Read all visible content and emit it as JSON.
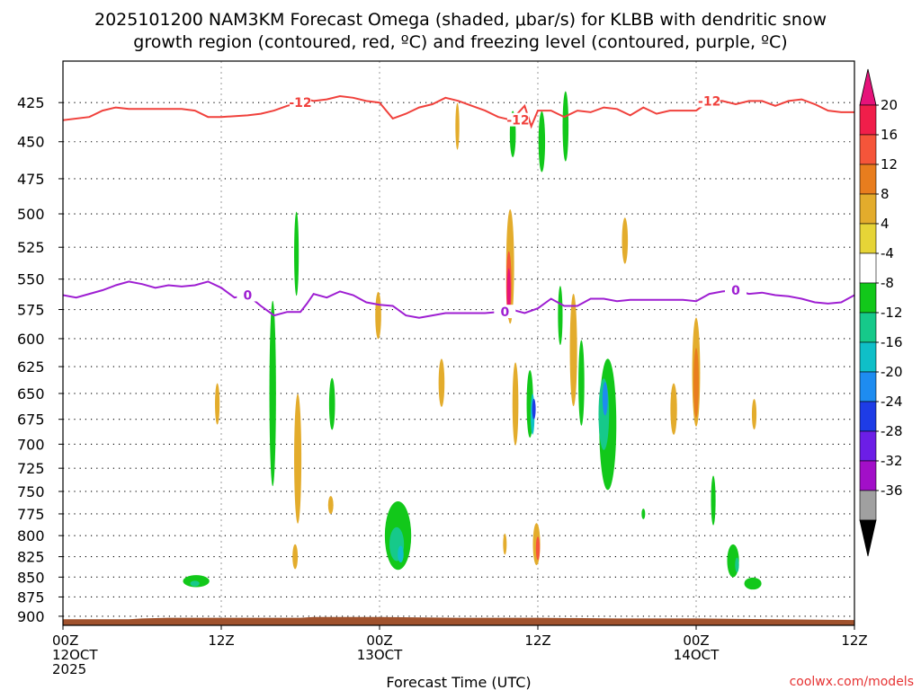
{
  "chart_data": {
    "type": "time-pressure cross-section (filled contours)",
    "title_line1": "2025101200 NAM3KM Forecast Omega (shaded, μbar/s) for KLBB with dendritic snow",
    "title_line2": "growth region (contoured, red, ºC) and freezing level (contoured, purple, ºC)",
    "xlabel": "Forecast Time (UTC)",
    "credit": "coolwx.com/models",
    "x_range_hours": [
      0,
      60
    ],
    "x_ticks": [
      {
        "hour": 0,
        "lines": [
          "00Z",
          "12OCT",
          "2025"
        ]
      },
      {
        "hour": 12,
        "lines": [
          "12Z"
        ]
      },
      {
        "hour": 24,
        "lines": [
          "00Z",
          "13OCT"
        ]
      },
      {
        "hour": 36,
        "lines": [
          "12Z"
        ]
      },
      {
        "hour": 48,
        "lines": [
          "00Z",
          "14OCT"
        ]
      },
      {
        "hour": 60,
        "lines": [
          "12Z"
        ]
      }
    ],
    "y_range_hpa": [
      912,
      400
    ],
    "y_ticks": [
      "425",
      "450",
      "475",
      "500",
      "525",
      "550",
      "575",
      "600",
      "625",
      "650",
      "675",
      "700",
      "725",
      "750",
      "775",
      "800",
      "825",
      "850",
      "875",
      "900"
    ],
    "colorbar": {
      "labels": [
        "20",
        "16",
        "12",
        "8",
        "4",
        "-4",
        "-8",
        "-12",
        "-16",
        "-20",
        "-24",
        "-28",
        "-32",
        "-36"
      ],
      "colors": [
        "#f01e4a",
        "#f5553a",
        "#e87d1e",
        "#e3ac2c",
        "#e6d437",
        "#ffffff",
        "#12c81a",
        "#16c98a",
        "#0fbfc8",
        "#1e8cf0",
        "#1e3ce6",
        "#6c1ee6",
        "#a20fc8",
        "#a0a0a0"
      ],
      "top_color": "#e6127a",
      "bottom_color": "#000000"
    },
    "contours": [
      {
        "name": "dendritic-growth-isotherm",
        "label": "-12",
        "color": "#f0413c",
        "points": [
          [
            0,
            436
          ],
          [
            2,
            434
          ],
          [
            3,
            430
          ],
          [
            4,
            428
          ],
          [
            5,
            429
          ],
          [
            6,
            429
          ],
          [
            7,
            429
          ],
          [
            8,
            429
          ],
          [
            9,
            429
          ],
          [
            10,
            430
          ],
          [
            11,
            434
          ],
          [
            12,
            434
          ],
          [
            14,
            433
          ],
          [
            15,
            432
          ],
          [
            16,
            430
          ],
          [
            17,
            427
          ],
          [
            18,
            425
          ],
          [
            18.5,
            423
          ],
          [
            19,
            424
          ],
          [
            20,
            423
          ],
          [
            21,
            421
          ],
          [
            22,
            422
          ],
          [
            23,
            424
          ],
          [
            24,
            425
          ],
          [
            25,
            435
          ],
          [
            26,
            432
          ],
          [
            27,
            428
          ],
          [
            28,
            426
          ],
          [
            29,
            422
          ],
          [
            30,
            424
          ],
          [
            31,
            427
          ],
          [
            32,
            430
          ],
          [
            33,
            434
          ],
          [
            34,
            436
          ],
          [
            35,
            427
          ],
          [
            35.5,
            440
          ],
          [
            36,
            430
          ],
          [
            37,
            430
          ],
          [
            38,
            434
          ],
          [
            39,
            430
          ],
          [
            40,
            431
          ],
          [
            41,
            428
          ],
          [
            42,
            429
          ],
          [
            43,
            433
          ],
          [
            44,
            428
          ],
          [
            45,
            432
          ],
          [
            46,
            430
          ],
          [
            47,
            430
          ],
          [
            48,
            430
          ],
          [
            49,
            424
          ],
          [
            50,
            424
          ],
          [
            51,
            426
          ],
          [
            52,
            424
          ],
          [
            53,
            424
          ],
          [
            54,
            427
          ],
          [
            55,
            424
          ],
          [
            56,
            423
          ],
          [
            57,
            426
          ],
          [
            58,
            430
          ],
          [
            59,
            431
          ],
          [
            60,
            431
          ]
        ],
        "label_hours": [
          18,
          34.5,
          49
        ]
      },
      {
        "name": "freezing-level",
        "label": "0",
        "color": "#9e1ed2",
        "points": [
          [
            0,
            563
          ],
          [
            1,
            565
          ],
          [
            2,
            562
          ],
          [
            3,
            559
          ],
          [
            4,
            555
          ],
          [
            5,
            552
          ],
          [
            6,
            554
          ],
          [
            7,
            557
          ],
          [
            8,
            555
          ],
          [
            9,
            556
          ],
          [
            10,
            555
          ],
          [
            11,
            552
          ],
          [
            12,
            557
          ],
          [
            13,
            565
          ],
          [
            14,
            563
          ],
          [
            15,
            572
          ],
          [
            16,
            580
          ],
          [
            17,
            577
          ],
          [
            18,
            577
          ],
          [
            18.5,
            570
          ],
          [
            19,
            562
          ],
          [
            20,
            565
          ],
          [
            21,
            560
          ],
          [
            22,
            563
          ],
          [
            23,
            569
          ],
          [
            24,
            571
          ],
          [
            25,
            572
          ],
          [
            26,
            580
          ],
          [
            27,
            582
          ],
          [
            28,
            580
          ],
          [
            29,
            578
          ],
          [
            30,
            578
          ],
          [
            31,
            578
          ],
          [
            32,
            578
          ],
          [
            33,
            577
          ],
          [
            34,
            575
          ],
          [
            35,
            578
          ],
          [
            36,
            574
          ],
          [
            37,
            566
          ],
          [
            38,
            572
          ],
          [
            39,
            572
          ],
          [
            40,
            566
          ],
          [
            41,
            566
          ],
          [
            42,
            568
          ],
          [
            43,
            567
          ],
          [
            44,
            567
          ],
          [
            45,
            567
          ],
          [
            46,
            567
          ],
          [
            47,
            567
          ],
          [
            48,
            568
          ],
          [
            49,
            562
          ],
          [
            50,
            560
          ],
          [
            51,
            559
          ],
          [
            52,
            562
          ],
          [
            53,
            561
          ],
          [
            54,
            563
          ],
          [
            55,
            564
          ],
          [
            56,
            566
          ],
          [
            57,
            569
          ],
          [
            58,
            570
          ],
          [
            59,
            569
          ],
          [
            60,
            563
          ]
        ],
        "label_hours": [
          14,
          33.5,
          51
        ]
      }
    ],
    "omega_features": [
      {
        "hour": 11.7,
        "hpa": 660,
        "w_hours": 0.35,
        "h_hpa": 40,
        "value": 5
      },
      {
        "hour": 15.9,
        "hpa": 650,
        "w_hours": 0.5,
        "h_hpa": 175,
        "value": -5
      },
      {
        "hour": 17.7,
        "hpa": 530,
        "w_hours": 0.35,
        "h_hpa": 65,
        "value": -5
      },
      {
        "hour": 17.8,
        "hpa": 715,
        "w_hours": 0.55,
        "h_hpa": 135,
        "value": 5
      },
      {
        "hour": 17.6,
        "hpa": 825,
        "w_hours": 0.4,
        "h_hpa": 30,
        "value": 5
      },
      {
        "hour": 20.4,
        "hpa": 660,
        "w_hours": 0.45,
        "h_hpa": 50,
        "value": -5
      },
      {
        "hour": 23.9,
        "hpa": 580,
        "w_hours": 0.45,
        "h_hpa": 40,
        "value": 5
      },
      {
        "hour": 25.4,
        "hpa": 800,
        "w_hours": 2.0,
        "h_hpa": 80,
        "value": -5
      },
      {
        "hour": 25.3,
        "hpa": 810,
        "w_hours": 1.1,
        "h_hpa": 40,
        "value": -9
      },
      {
        "hour": 25.6,
        "hpa": 822,
        "w_hours": 0.45,
        "h_hpa": 20,
        "value": -13
      },
      {
        "hour": 28.7,
        "hpa": 640,
        "w_hours": 0.45,
        "h_hpa": 45,
        "value": 5
      },
      {
        "hour": 29.9,
        "hpa": 440,
        "w_hours": 0.3,
        "h_hpa": 30,
        "value": 5
      },
      {
        "hour": 33.9,
        "hpa": 540,
        "w_hours": 0.6,
        "h_hpa": 90,
        "value": 5
      },
      {
        "hour": 33.8,
        "hpa": 555,
        "w_hours": 0.4,
        "h_hpa": 55,
        "value": 13
      },
      {
        "hour": 33.8,
        "hpa": 560,
        "w_hours": 0.27,
        "h_hpa": 38,
        "value": 21
      },
      {
        "hour": 34.1,
        "hpa": 445,
        "w_hours": 0.45,
        "h_hpa": 30,
        "value": -5
      },
      {
        "hour": 33.5,
        "hpa": 810,
        "w_hours": 0.25,
        "h_hpa": 25,
        "value": 5
      },
      {
        "hour": 35.4,
        "hpa": 660,
        "w_hours": 0.5,
        "h_hpa": 65,
        "value": -5
      },
      {
        "hour": 35.6,
        "hpa": 670,
        "w_hours": 0.3,
        "h_hpa": 40,
        "value": -13
      },
      {
        "hour": 35.7,
        "hpa": 665,
        "w_hours": 0.12,
        "h_hpa": 20,
        "value": -21
      },
      {
        "hour": 34.3,
        "hpa": 660,
        "w_hours": 0.45,
        "h_hpa": 80,
        "value": 5
      },
      {
        "hour": 35.9,
        "hpa": 810,
        "w_hours": 0.55,
        "h_hpa": 50,
        "value": 5
      },
      {
        "hour": 36.0,
        "hpa": 815,
        "w_hours": 0.3,
        "h_hpa": 28,
        "value": 13
      },
      {
        "hour": 36.3,
        "hpa": 450,
        "w_hours": 0.5,
        "h_hpa": 40,
        "value": -5
      },
      {
        "hour": 38.1,
        "hpa": 440,
        "w_hours": 0.45,
        "h_hpa": 45,
        "value": -5
      },
      {
        "hour": 37.7,
        "hpa": 580,
        "w_hours": 0.35,
        "h_hpa": 50,
        "value": -5
      },
      {
        "hour": 38.7,
        "hpa": 610,
        "w_hours": 0.55,
        "h_hpa": 100,
        "value": 5
      },
      {
        "hour": 39.3,
        "hpa": 640,
        "w_hours": 0.45,
        "h_hpa": 80,
        "value": -5
      },
      {
        "hour": 41.3,
        "hpa": 680,
        "w_hours": 1.3,
        "h_hpa": 130,
        "value": -5
      },
      {
        "hour": 41.0,
        "hpa": 670,
        "w_hours": 0.8,
        "h_hpa": 70,
        "value": -9
      },
      {
        "hour": 41.1,
        "hpa": 655,
        "w_hours": 0.4,
        "h_hpa": 32,
        "value": -17
      },
      {
        "hour": 42.6,
        "hpa": 520,
        "w_hours": 0.45,
        "h_hpa": 35,
        "value": 5
      },
      {
        "hour": 44.0,
        "hpa": 775,
        "w_hours": 0.15,
        "h_hpa": 12,
        "value": -5
      },
      {
        "hour": 46.3,
        "hpa": 665,
        "w_hours": 0.5,
        "h_hpa": 50,
        "value": 5
      },
      {
        "hour": 48.0,
        "hpa": 630,
        "w_hours": 0.6,
        "h_hpa": 100,
        "value": 5
      },
      {
        "hour": 48.0,
        "hpa": 640,
        "w_hours": 0.4,
        "h_hpa": 65,
        "value": 9
      },
      {
        "hour": 49.3,
        "hpa": 760,
        "w_hours": 0.35,
        "h_hpa": 55,
        "value": -5
      },
      {
        "hour": 50.8,
        "hpa": 830,
        "w_hours": 0.9,
        "h_hpa": 40,
        "value": -5
      },
      {
        "hour": 51.1,
        "hpa": 835,
        "w_hours": 0.3,
        "h_hpa": 18,
        "value": -9
      },
      {
        "hour": 52.4,
        "hpa": 670,
        "w_hours": 0.35,
        "h_hpa": 30,
        "value": 5
      },
      {
        "hour": 52.3,
        "hpa": 858,
        "w_hours": 1.3,
        "h_hpa": 15,
        "value": -5
      },
      {
        "hour": 10.1,
        "hpa": 855,
        "w_hours": 2.0,
        "h_hpa": 15,
        "value": -5
      },
      {
        "hour": 10.0,
        "hpa": 858,
        "w_hours": 0.7,
        "h_hpa": 7,
        "value": -9
      },
      {
        "hour": 20.3,
        "hpa": 765,
        "w_hours": 0.4,
        "h_hpa": 20,
        "value": 5
      }
    ],
    "terrain": {
      "color": "#a0522d",
      "surface_hpa": [
        [
          0,
          904
        ],
        [
          5,
          904
        ],
        [
          6,
          903
        ],
        [
          8,
          902
        ],
        [
          12,
          902
        ],
        [
          18,
          902
        ],
        [
          19,
          901
        ],
        [
          24,
          901
        ],
        [
          30,
          902
        ],
        [
          36,
          902
        ],
        [
          42,
          903
        ],
        [
          48,
          903
        ],
        [
          54,
          904
        ],
        [
          60,
          905
        ]
      ]
    }
  }
}
